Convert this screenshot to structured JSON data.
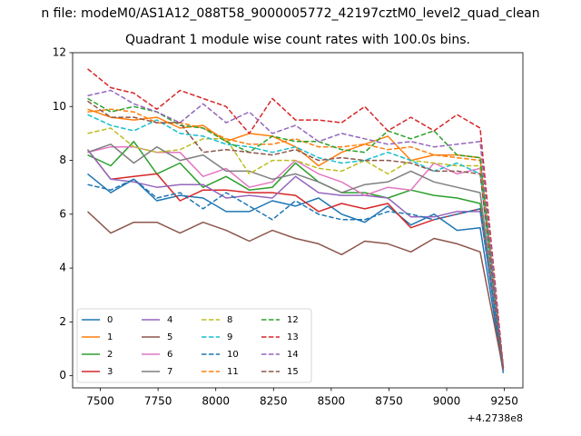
{
  "suptitle": "n file: modeM0/AS1A12_088T58_9000005772_42197cztM0_level2_quad_clean",
  "chart_data": {
    "type": "line",
    "title": "Quadrant 1 module wise count rates with 100.0s bins.",
    "xlabel": "",
    "ylabel": "",
    "x_offset_label": "+4.2738e8",
    "xlim": [
      7380,
      9330
    ],
    "ylim": [
      -0.45,
      12
    ],
    "xticks": [
      7500,
      7750,
      8000,
      8250,
      8500,
      8750,
      9000,
      9250
    ],
    "xtick_labels": [
      "7500",
      "7750",
      "8000",
      "8250",
      "8500",
      "8750",
      "9000",
      "9250"
    ],
    "yticks": [
      0,
      2,
      4,
      6,
      8,
      10,
      12
    ],
    "ytick_labels": [
      "0",
      "2",
      "4",
      "6",
      "8",
      "10",
      "12"
    ],
    "grid": false,
    "legend_position": "lower-left",
    "legend_columns": 4,
    "x": [
      7445,
      7545,
      7645,
      7745,
      7845,
      7945,
      8045,
      8145,
      8245,
      8345,
      8445,
      8545,
      8645,
      8745,
      8845,
      8945,
      9045,
      9145,
      9245
    ],
    "series": [
      {
        "name": "0",
        "color": "#1f77b4",
        "dashed": false,
        "values": [
          7.5,
          6.8,
          7.3,
          6.5,
          6.7,
          6.6,
          6.1,
          6.1,
          6.5,
          6.3,
          6.6,
          6.0,
          5.7,
          6.3,
          5.6,
          6.0,
          5.4,
          5.5,
          0.1
        ]
      },
      {
        "name": "1",
        "color": "#ff7f0e",
        "dashed": false,
        "values": [
          9.9,
          9.6,
          9.5,
          9.6,
          9.2,
          9.3,
          8.7,
          9.0,
          8.9,
          8.5,
          7.8,
          8.3,
          8.6,
          8.9,
          8.0,
          8.2,
          8.2,
          8.1,
          0.3
        ]
      },
      {
        "name": "2",
        "color": "#2ca02c",
        "dashed": false,
        "values": [
          8.2,
          7.8,
          8.7,
          7.5,
          7.9,
          7.0,
          7.4,
          6.9,
          7.0,
          7.9,
          7.2,
          6.8,
          6.8,
          6.6,
          6.9,
          6.7,
          6.6,
          6.4,
          0.2
        ]
      },
      {
        "name": "3",
        "color": "#d62728",
        "dashed": false,
        "values": [
          8.4,
          7.3,
          7.4,
          7.5,
          6.5,
          6.9,
          6.9,
          6.8,
          6.8,
          6.7,
          6.1,
          6.4,
          6.2,
          6.4,
          5.5,
          5.8,
          6.0,
          6.2,
          0.2
        ]
      },
      {
        "name": "4",
        "color": "#9467bd",
        "dashed": false,
        "values": [
          8.4,
          7.3,
          7.2,
          7.0,
          7.1,
          7.1,
          6.6,
          6.7,
          6.6,
          7.4,
          6.8,
          6.7,
          6.7,
          6.6,
          5.9,
          5.9,
          6.1,
          6.1,
          0.3
        ]
      },
      {
        "name": "5",
        "color": "#8c564b",
        "dashed": false,
        "values": [
          6.1,
          5.3,
          5.7,
          5.7,
          5.3,
          5.7,
          5.4,
          5.0,
          5.4,
          5.1,
          4.9,
          4.5,
          5.0,
          4.9,
          4.6,
          5.1,
          4.9,
          4.6,
          0.2
        ]
      },
      {
        "name": "6",
        "color": "#e377c2",
        "dashed": false,
        "values": [
          8.3,
          8.5,
          8.5,
          8.3,
          8.3,
          7.4,
          7.7,
          7.0,
          7.2,
          8.0,
          7.5,
          7.2,
          6.7,
          7.0,
          6.9,
          7.9,
          7.5,
          7.7,
          0.3
        ]
      },
      {
        "name": "7",
        "color": "#7f7f7f",
        "dashed": false,
        "values": [
          8.3,
          8.6,
          7.9,
          8.5,
          8.0,
          8.2,
          7.6,
          7.6,
          7.3,
          7.5,
          7.2,
          6.8,
          7.1,
          7.2,
          7.6,
          7.2,
          7.0,
          6.8,
          0.2
        ]
      },
      {
        "name": "8",
        "color": "#bcbd22",
        "dashed": true,
        "values": [
          9.0,
          9.2,
          8.5,
          8.3,
          8.4,
          8.8,
          8.8,
          7.5,
          8.0,
          8.0,
          7.7,
          7.6,
          8.0,
          7.5,
          8.0,
          7.9,
          7.8,
          7.8,
          0.2
        ]
      },
      {
        "name": "9",
        "color": "#17becf",
        "dashed": true,
        "values": [
          9.7,
          9.3,
          9.1,
          9.5,
          9.0,
          8.9,
          8.6,
          8.5,
          8.3,
          8.5,
          8.1,
          7.9,
          8.0,
          8.3,
          8.0,
          7.6,
          7.9,
          7.5,
          0.2
        ]
      },
      {
        "name": "10",
        "color": "#1f77b4",
        "dashed": true,
        "values": [
          7.1,
          6.9,
          7.3,
          6.6,
          6.8,
          6.2,
          6.8,
          6.3,
          5.8,
          6.5,
          6.0,
          5.8,
          5.8,
          6.1,
          6.0,
          5.8,
          6.0,
          6.2,
          0.2
        ]
      },
      {
        "name": "11",
        "color": "#ff7f0e",
        "dashed": true,
        "values": [
          9.8,
          9.9,
          9.8,
          9.4,
          9.4,
          9.2,
          8.8,
          8.6,
          8.6,
          8.8,
          8.5,
          8.5,
          8.6,
          8.4,
          8.5,
          8.2,
          8.1,
          8.0,
          0.3
        ]
      },
      {
        "name": "12",
        "color": "#2ca02c",
        "dashed": true,
        "values": [
          10.3,
          9.8,
          10.0,
          9.8,
          9.3,
          9.2,
          8.7,
          8.3,
          8.9,
          8.7,
          8.7,
          8.4,
          8.3,
          9.1,
          8.8,
          9.1,
          8.2,
          8.1,
          0.3
        ]
      },
      {
        "name": "13",
        "color": "#d62728",
        "dashed": true,
        "values": [
          11.4,
          10.7,
          10.5,
          9.9,
          10.6,
          10.3,
          10.0,
          9.0,
          10.3,
          9.5,
          9.5,
          9.4,
          10.0,
          9.1,
          9.6,
          9.1,
          9.7,
          9.2,
          0.3
        ]
      },
      {
        "name": "14",
        "color": "#9467bd",
        "dashed": true,
        "values": [
          10.4,
          10.6,
          10.1,
          9.8,
          9.4,
          10.1,
          9.4,
          9.8,
          9.0,
          9.3,
          8.7,
          9.0,
          8.8,
          8.6,
          8.7,
          8.5,
          8.6,
          8.7,
          0.2
        ]
      },
      {
        "name": "15",
        "color": "#8c564b",
        "dashed": true,
        "values": [
          10.2,
          9.6,
          9.6,
          9.4,
          9.4,
          8.3,
          8.4,
          8.3,
          8.2,
          8.4,
          8.0,
          8.1,
          8.0,
          8.0,
          7.9,
          7.6,
          7.6,
          7.5,
          0.2
        ]
      }
    ]
  }
}
